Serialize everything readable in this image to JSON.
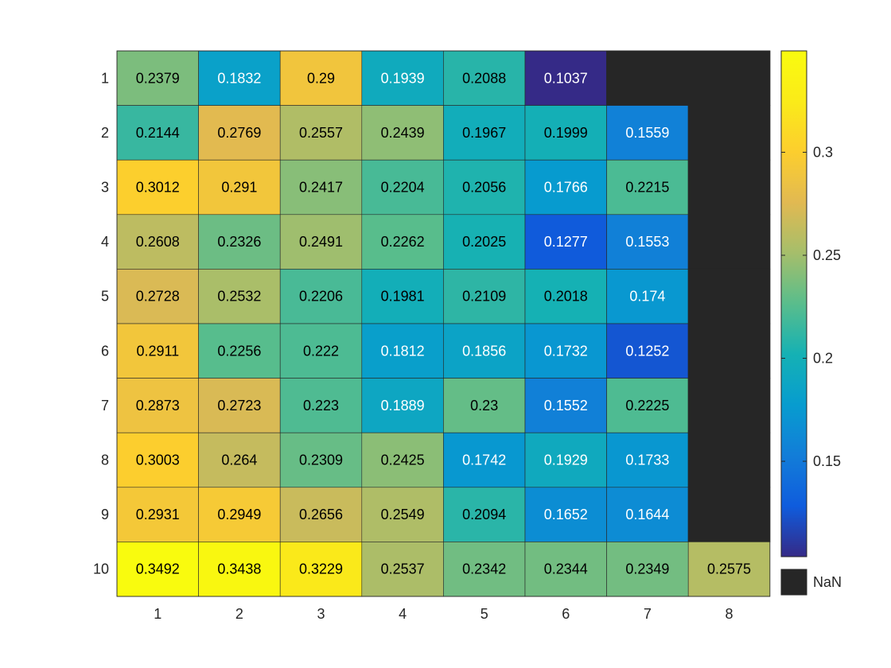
{
  "chart_data": {
    "type": "heatmap",
    "title": "",
    "xlabel": "",
    "ylabel": "",
    "x_ticks": [
      "1",
      "2",
      "3",
      "4",
      "5",
      "6",
      "7",
      "8"
    ],
    "y_ticks": [
      "1",
      "2",
      "3",
      "4",
      "5",
      "6",
      "7",
      "8",
      "9",
      "10"
    ],
    "cells": [
      [
        "0.2379",
        "0.1832",
        "0.29",
        "0.1939",
        "0.2088",
        "0.1037",
        null,
        null
      ],
      [
        "0.2144",
        "0.2769",
        "0.2557",
        "0.2439",
        "0.1967",
        "0.1999",
        "0.1559",
        null
      ],
      [
        "0.3012",
        "0.291",
        "0.2417",
        "0.2204",
        "0.2056",
        "0.1766",
        "0.2215",
        null
      ],
      [
        "0.2608",
        "0.2326",
        "0.2491",
        "0.2262",
        "0.2025",
        "0.1277",
        "0.1553",
        null
      ],
      [
        "0.2728",
        "0.2532",
        "0.2206",
        "0.1981",
        "0.2109",
        "0.2018",
        "0.174",
        null
      ],
      [
        "0.2911",
        "0.2256",
        "0.222",
        "0.1812",
        "0.1856",
        "0.1732",
        "0.1252",
        null
      ],
      [
        "0.2873",
        "0.2723",
        "0.223",
        "0.1889",
        "0.23",
        "0.1552",
        "0.2225",
        null
      ],
      [
        "0.3003",
        "0.264",
        "0.2309",
        "0.2425",
        "0.1742",
        "0.1929",
        "0.1733",
        null
      ],
      [
        "0.2931",
        "0.2949",
        "0.2656",
        "0.2549",
        "0.2094",
        "0.1652",
        "0.1644",
        null
      ],
      [
        "0.3492",
        "0.3438",
        "0.3229",
        "0.2537",
        "0.2342",
        "0.2344",
        "0.2349",
        "0.2575"
      ]
    ],
    "missing_label": "NaN",
    "missing_color": "#262626",
    "colormap": "parula",
    "color_range": [
      0.1037,
      0.3492
    ],
    "colorbar_ticks": [
      "0.15",
      "0.2",
      "0.25",
      "0.3"
    ],
    "colorbar_position": "right",
    "grid": true
  }
}
